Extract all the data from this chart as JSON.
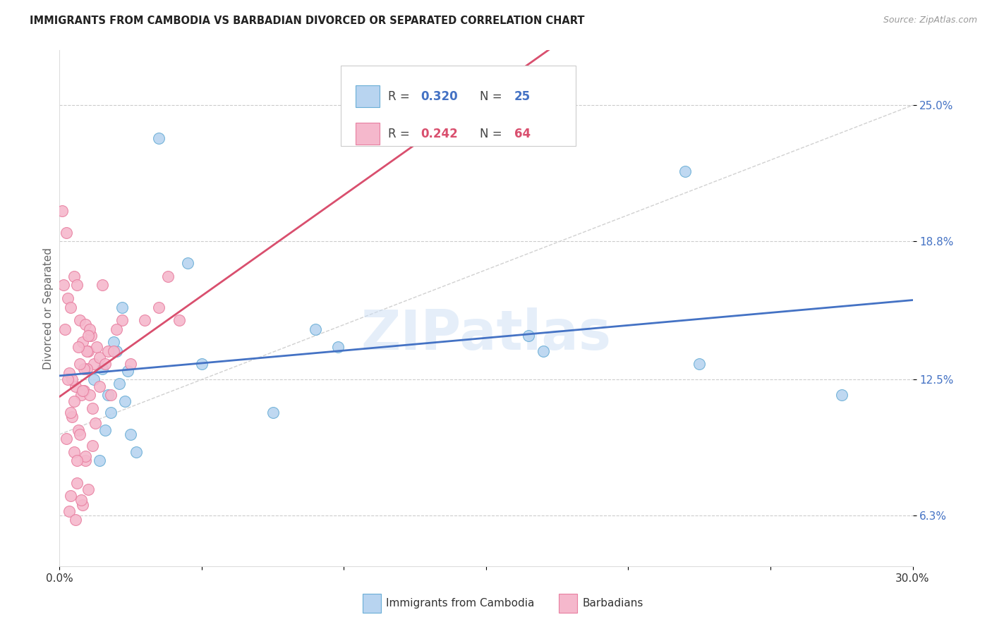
{
  "title": "IMMIGRANTS FROM CAMBODIA VS BARBADIAN DIVORCED OR SEPARATED CORRELATION CHART",
  "source": "Source: ZipAtlas.com",
  "ylabel": "Divorced or Separated",
  "xlim": [
    0.0,
    30.0
  ],
  "ylim_min": 4.0,
  "ylim_max": 27.5,
  "xtick_positions": [
    0.0,
    5.0,
    10.0,
    15.0,
    20.0,
    25.0,
    30.0
  ],
  "xtick_labels": [
    "0.0%",
    "",
    "",
    "",
    "",
    "",
    "30.0%"
  ],
  "ytick_values": [
    6.3,
    12.5,
    18.8,
    25.0
  ],
  "ytick_labels": [
    "6.3%",
    "12.5%",
    "18.8%",
    "25.0%"
  ],
  "grid_color": "#cccccc",
  "background_color": "#ffffff",
  "series1_label": "Immigrants from Cambodia",
  "series1_R": "0.320",
  "series1_N": "25",
  "series1_color": "#b8d4f0",
  "series1_edge": "#6aaed6",
  "series2_label": "Barbadians",
  "series2_R": "0.242",
  "series2_N": "64",
  "series2_color": "#f5b8cc",
  "series2_edge": "#e87fa0",
  "trendline1_color": "#4472c4",
  "trendline2_color": "#d94f6e",
  "refline_color": "#cccccc",
  "watermark": "ZIPatlas",
  "legend_R_color1": "#4472c4",
  "legend_R_color2": "#d94f6e",
  "series1_x": [
    3.5,
    1.5,
    1.7,
    2.1,
    2.4,
    2.0,
    2.3,
    1.8,
    1.6,
    2.5,
    2.7,
    1.9,
    2.2,
    4.5,
    5.0,
    9.0,
    9.8,
    7.5,
    17.0,
    16.5,
    22.5,
    22.0,
    27.5,
    1.4,
    1.2
  ],
  "series1_y": [
    23.5,
    13.0,
    11.8,
    12.3,
    12.9,
    13.8,
    11.5,
    11.0,
    10.2,
    10.0,
    9.2,
    14.2,
    15.8,
    17.8,
    13.2,
    14.8,
    14.0,
    11.0,
    13.8,
    14.5,
    13.2,
    22.0,
    11.8,
    8.8,
    12.5
  ],
  "series2_x": [
    0.2,
    0.3,
    0.4,
    0.5,
    0.6,
    0.7,
    0.8,
    0.9,
    1.0,
    1.1,
    1.2,
    1.3,
    1.4,
    0.35,
    0.55,
    0.75,
    0.95,
    1.15,
    0.45,
    0.65,
    0.85,
    1.05,
    1.25,
    0.25,
    0.5,
    0.7,
    0.9,
    1.15,
    0.4,
    0.6,
    0.8,
    1.0,
    0.35,
    0.55,
    0.75,
    0.95,
    0.45,
    0.65,
    0.85,
    1.05,
    0.3,
    0.5,
    0.7,
    0.9,
    0.4,
    0.6,
    0.8,
    1.0,
    3.5,
    3.8,
    1.5,
    1.7,
    4.2,
    1.9,
    2.2,
    2.5,
    2.0,
    1.8,
    1.6,
    1.4,
    3.0,
    0.25,
    0.15,
    0.1
  ],
  "series2_y": [
    14.8,
    16.2,
    15.8,
    17.2,
    16.8,
    15.2,
    14.2,
    15.0,
    13.8,
    14.5,
    13.2,
    14.0,
    13.5,
    12.8,
    12.2,
    11.8,
    13.0,
    11.2,
    10.8,
    10.2,
    12.0,
    11.8,
    10.5,
    9.8,
    9.2,
    10.0,
    8.8,
    9.5,
    7.2,
    7.8,
    6.8,
    7.5,
    6.5,
    6.1,
    7.0,
    13.8,
    12.5,
    14.0,
    13.0,
    14.8,
    12.5,
    11.5,
    13.2,
    9.0,
    11.0,
    8.8,
    12.0,
    14.5,
    15.8,
    17.2,
    16.8,
    13.8,
    15.2,
    13.8,
    15.2,
    13.2,
    14.8,
    11.8,
    13.2,
    12.2,
    15.2,
    19.2,
    16.8,
    20.2
  ]
}
